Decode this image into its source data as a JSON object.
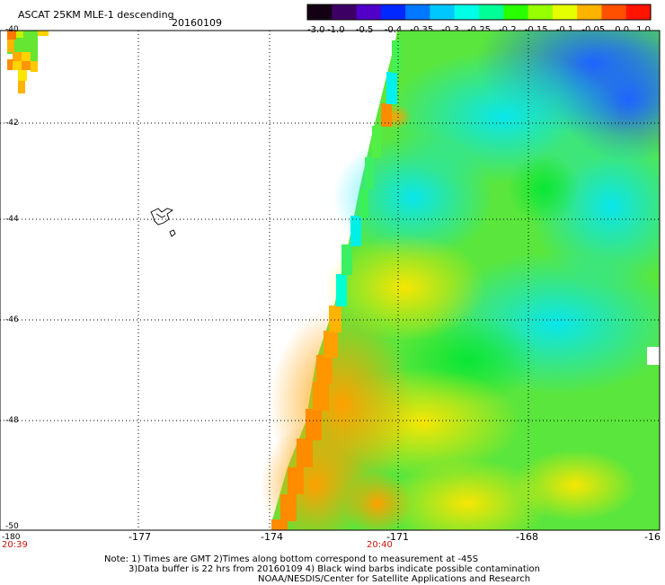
{
  "title": "ASCAT 25KM MLE-1 descending",
  "date": "20160109",
  "colorbar": {
    "labels": [
      "-3.0",
      "-1.0",
      "-0.5",
      "-0.4",
      "-0.35",
      "-0.3",
      "-0.25",
      "-0.2",
      "-0.15",
      "-0.1",
      "-0.05",
      "0.0",
      "1.0"
    ],
    "colors": [
      "#140014",
      "#3c0064",
      "#5000c8",
      "#0028ff",
      "#0078ff",
      "#00c8ff",
      "#00ffe6",
      "#00ff96",
      "#28ff00",
      "#96ff00",
      "#e6ff00",
      "#ffb400",
      "#ff5000",
      "#ff1400"
    ]
  },
  "axes": {
    "lat_labels": [
      "-40",
      "-42",
      "-44",
      "-46",
      "-48",
      "-50"
    ],
    "lon_labels": [
      "-180",
      "-177",
      "-174",
      "-171",
      "-168",
      "-16"
    ]
  },
  "times": [
    "20:39",
    "20:40"
  ],
  "notes": [
    "Note: 1) Times are GMT 2)Times along bottom correspond to measurement at -45S",
    "3)Data buffer is 22 hrs from 20160109 4) Black wind barbs indicate possible contamination",
    "NOAA/NESDIS/Center for Satellite Applications and Research"
  ]
}
